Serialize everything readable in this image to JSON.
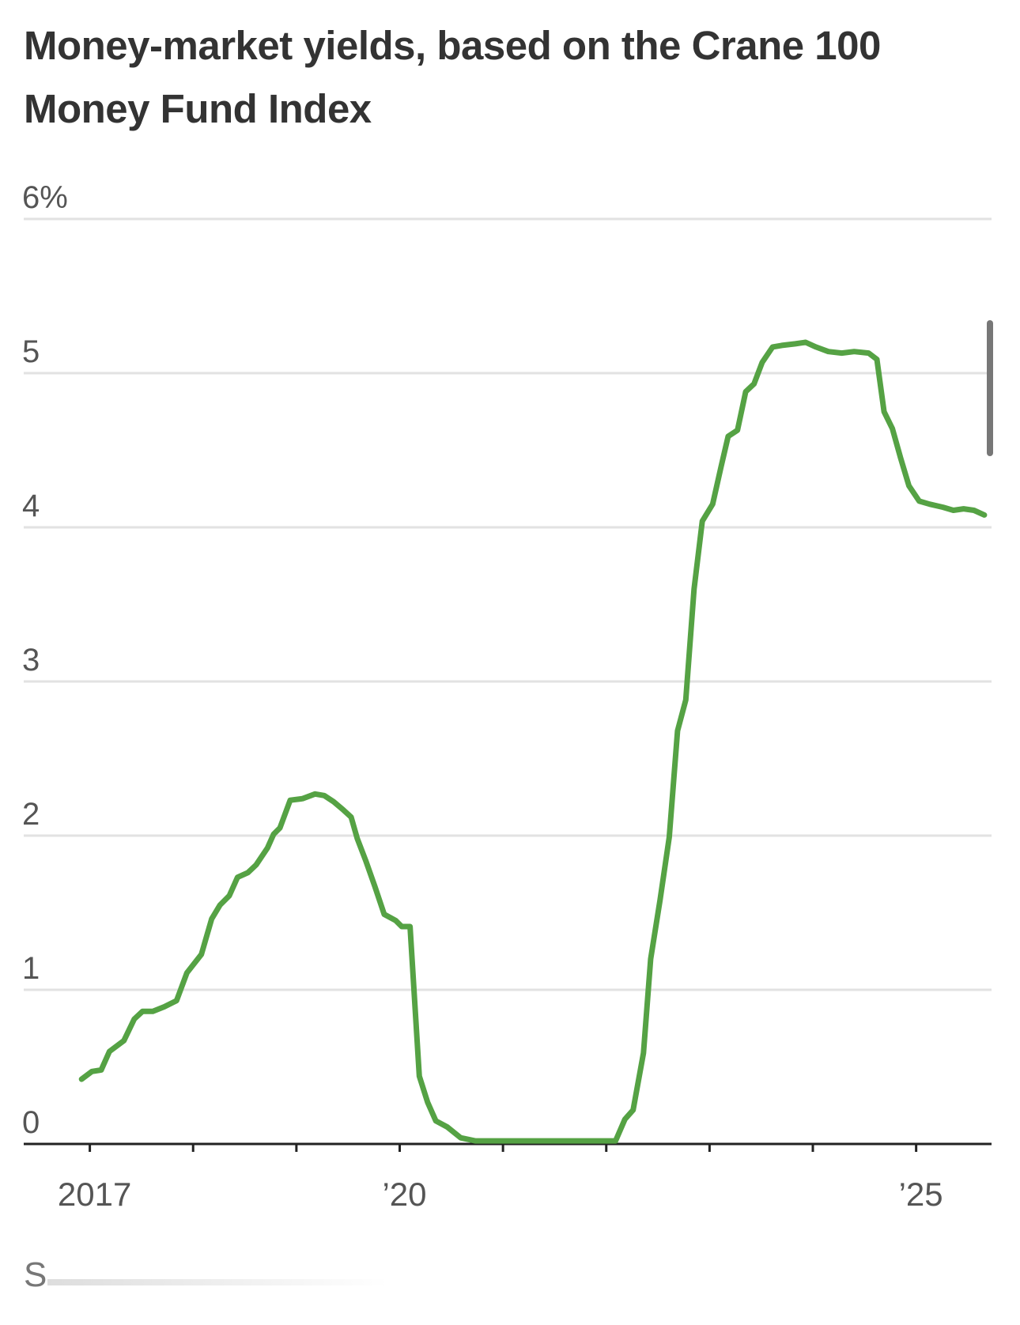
{
  "chart_data": {
    "type": "line",
    "title": "Money-market yields, based on the Crane 100 Money Fund Index",
    "source": "S",
    "series": [
      {
        "color": "#55a244",
        "x": [
          2016.92,
          2017.02,
          2017.11,
          2017.19,
          2017.33,
          2017.43,
          2017.51,
          2017.61,
          2017.72,
          2017.84,
          2017.94,
          2018.08,
          2018.18,
          2018.26,
          2018.35,
          2018.43,
          2018.53,
          2018.61,
          2018.72,
          2018.78,
          2018.84,
          2018.94,
          2019.06,
          2019.18,
          2019.27,
          2019.36,
          2019.45,
          2019.53,
          2019.59,
          2019.67,
          2019.76,
          2019.85,
          2019.96,
          2020.02,
          2020.1,
          2020.19,
          2020.27,
          2020.35,
          2020.46,
          2020.59,
          2020.73,
          2021.02,
          2021.42,
          2021.83,
          2022.09,
          2022.18,
          2022.26,
          2022.36,
          2022.43,
          2022.52,
          2022.61,
          2022.69,
          2022.77,
          2022.85,
          2022.93,
          2023.03,
          2023.11,
          2023.18,
          2023.27,
          2023.35,
          2023.43,
          2023.51,
          2023.61,
          2023.7,
          2023.83,
          2023.93,
          2024.03,
          2024.15,
          2024.28,
          2024.4,
          2024.54,
          2024.62,
          2024.69,
          2024.77,
          2024.85,
          2024.93,
          2025.03,
          2025.13,
          2025.26,
          2025.36,
          2025.46,
          2025.56,
          2025.66
        ],
        "values": [
          0.42,
          0.47,
          0.48,
          0.6,
          0.67,
          0.81,
          0.86,
          0.86,
          0.89,
          0.93,
          1.11,
          1.23,
          1.46,
          1.55,
          1.61,
          1.73,
          1.76,
          1.81,
          1.92,
          2.01,
          2.05,
          2.23,
          2.24,
          2.27,
          2.26,
          2.22,
          2.17,
          2.12,
          1.98,
          1.84,
          1.67,
          1.49,
          1.45,
          1.41,
          1.41,
          0.44,
          0.27,
          0.15,
          0.11,
          0.04,
          0.02,
          0.02,
          0.02,
          0.02,
          0.02,
          0.16,
          0.22,
          0.59,
          1.2,
          1.58,
          1.99,
          2.68,
          2.88,
          3.6,
          4.04,
          4.15,
          4.39,
          4.59,
          4.63,
          4.88,
          4.93,
          5.07,
          5.17,
          5.18,
          5.19,
          5.2,
          5.17,
          5.14,
          5.13,
          5.14,
          5.13,
          5.09,
          4.75,
          4.64,
          4.45,
          4.27,
          4.17,
          4.15,
          4.13,
          4.11,
          4.12,
          4.11,
          4.08
        ]
      }
    ],
    "xlim": [
      2016.36,
      2025.73
    ],
    "xticks": [
      {
        "value": 2017,
        "label": "2017"
      },
      {
        "value": 2020,
        "label": "’20"
      },
      {
        "value": 2025,
        "label": "’25"
      }
    ],
    "xminor_ticks": [
      2018,
      2019,
      2021,
      2022,
      2023,
      2024
    ],
    "ylim": [
      0,
      6
    ],
    "yticks": [
      0,
      1,
      2,
      3,
      4,
      5,
      {
        "value": 6,
        "label": "6%"
      }
    ],
    "grid": true
  }
}
